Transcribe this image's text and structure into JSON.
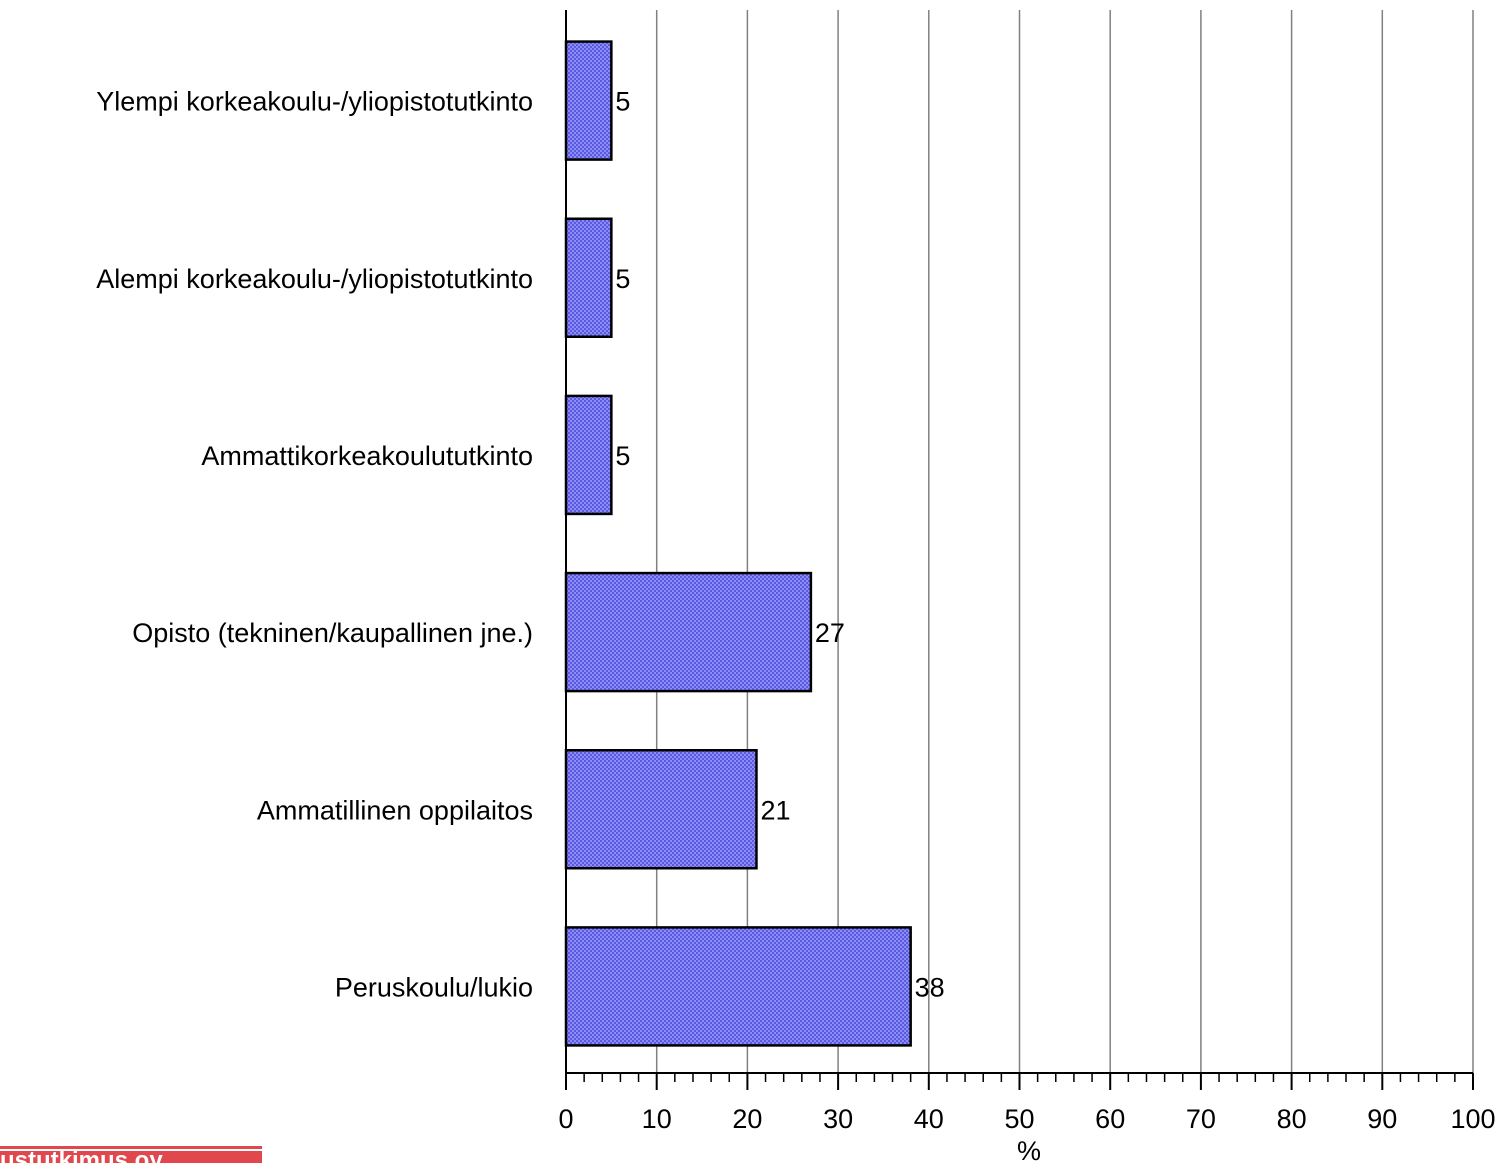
{
  "chart_data": {
    "type": "bar",
    "orientation": "horizontal",
    "categories": [
      "Ylempi korkeakoulu-/yliopistotutkinto",
      "Alempi korkeakoulu-/yliopistotutkinto",
      "Ammattikorkeakoulututkinto",
      "Opisto (tekninen/kaupallinen jne.)",
      "Ammatillinen oppilaitos",
      "Peruskoulu/lukio"
    ],
    "values": [
      5,
      5,
      5,
      27,
      21,
      38
    ],
    "data_labels": [
      "5",
      "5",
      "5",
      "27",
      "21",
      "38"
    ],
    "xlabel": "%",
    "xlim": [
      0,
      100
    ],
    "xticks": [
      0,
      10,
      20,
      30,
      40,
      50,
      60,
      70,
      80,
      90,
      100
    ],
    "xtick_labels": [
      "0",
      "10",
      "20",
      "30",
      "40",
      "50",
      "60",
      "70",
      "80",
      "90",
      "100"
    ],
    "grid": true,
    "legend": "none",
    "bar_color": "#7b7bf0"
  },
  "watermark": {
    "text": "ustutkimus oy",
    "color": "#e0484e"
  }
}
